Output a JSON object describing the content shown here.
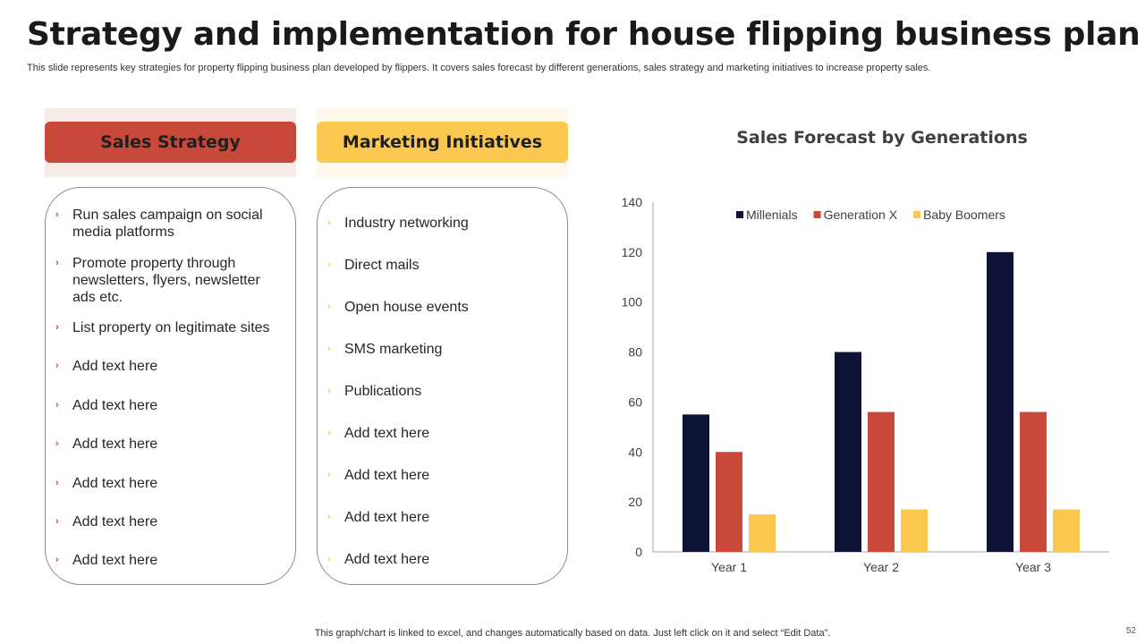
{
  "slide": {
    "title": "Strategy and implementation for house flipping business plan",
    "subtitle": "This slide represents key strategies for property flipping business plan developed by flippers. It covers sales forecast by different generations, sales strategy and marketing initiatives to increase property sales.",
    "footer_note": "This graph/chart is linked to excel,  and changes automatically based on data. Just left click on it and select “Edit Data”.",
    "page_number": "52"
  },
  "sales_strategy": {
    "heading": "Sales Strategy",
    "items": [
      {
        "label": "Run sales campaign on social media platforms"
      },
      {
        "label": "Promote property through newsletters, flyers, newsletter ads etc."
      },
      {
        "label": "List property on legitimate sites"
      },
      {
        "label": "Add text here"
      },
      {
        "label": "Add text here"
      },
      {
        "label": "Add text here"
      },
      {
        "label": "Add text here"
      },
      {
        "label": "Add text here"
      },
      {
        "label": "Add text here"
      }
    ]
  },
  "marketing_initiatives": {
    "heading": "Marketing Initiatives",
    "items": [
      {
        "label": "Industry  networking"
      },
      {
        "label": "Direct mails"
      },
      {
        "label": "Open house events"
      },
      {
        "label": "SMS marketing"
      },
      {
        "label": "Publications"
      },
      {
        "label": "Add text here"
      },
      {
        "label": "Add text here"
      },
      {
        "label": "Add text here"
      },
      {
        "label": "Add text here"
      }
    ]
  },
  "icons": {
    "bullet": "chevron-right-icon",
    "bullet_glyph": "›"
  },
  "colors": {
    "millenials": "#0e1236",
    "generation_x": "#c8493a",
    "baby_boomers": "#fac74f",
    "sales_heading": "#c8493a",
    "marketing_heading": "#fac74f"
  },
  "chart_data": {
    "type": "bar",
    "title": "Sales Forecast by Generations",
    "categories": [
      "Year 1",
      "Year 2",
      "Year 3"
    ],
    "series": [
      {
        "name": "Millenials",
        "values": [
          55,
          80,
          120
        ],
        "color": "#0e1236"
      },
      {
        "name": "Generation X",
        "values": [
          40,
          56,
          56
        ],
        "color": "#c8493a"
      },
      {
        "name": "Baby Boomers",
        "values": [
          15,
          17,
          17
        ],
        "color": "#fac74f"
      }
    ],
    "ylim": [
      0,
      140
    ],
    "yticks": [
      0,
      20,
      40,
      60,
      80,
      100,
      120,
      140
    ],
    "xlabel": "",
    "ylabel": "",
    "legend": "top",
    "grid": false
  }
}
